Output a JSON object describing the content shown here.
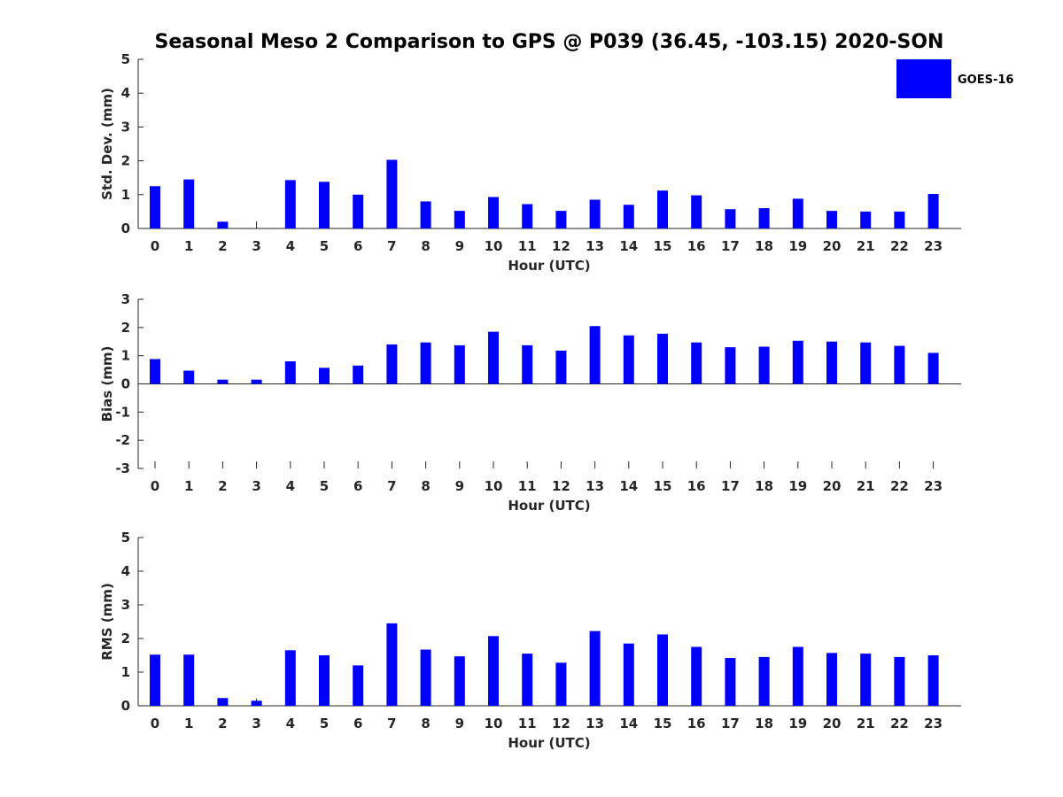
{
  "chart_data": {
    "title": "Seasonal Meso 2 Comparison to GPS @ P039 (36.45, -103.15) 2020-SON",
    "legend": {
      "label": "GOES-16",
      "placement": "top-right",
      "color": "#0000ff"
    },
    "bar_color": "#0000ff",
    "panels": [
      {
        "type": "bar",
        "ylabel": "Std. Dev. (mm)",
        "xlabel": "Hour (UTC)",
        "ylim": [
          0,
          5
        ],
        "yticks": [
          "0",
          "1",
          "2",
          "3",
          "4",
          "5"
        ],
        "categories": [
          "0",
          "1",
          "2",
          "3",
          "4",
          "5",
          "6",
          "7",
          "8",
          "9",
          "10",
          "11",
          "12",
          "13",
          "14",
          "15",
          "16",
          "17",
          "18",
          "19",
          "20",
          "21",
          "22",
          "23"
        ],
        "values": [
          1.25,
          1.45,
          0.2,
          0.0,
          1.43,
          1.38,
          1.0,
          2.03,
          0.8,
          0.52,
          0.93,
          0.72,
          0.52,
          0.85,
          0.7,
          1.12,
          0.98,
          0.57,
          0.6,
          0.88,
          0.52,
          0.5,
          0.5,
          1.02
        ]
      },
      {
        "type": "bar",
        "ylabel": "Bias (mm)",
        "xlabel": "Hour (UTC)",
        "ylim": [
          -3,
          3
        ],
        "yticks": [
          "-3",
          "-2",
          "-1",
          "0",
          "1",
          "2",
          "3"
        ],
        "categories": [
          "0",
          "1",
          "2",
          "3",
          "4",
          "5",
          "6",
          "7",
          "8",
          "9",
          "10",
          "11",
          "12",
          "13",
          "14",
          "15",
          "16",
          "17",
          "18",
          "19",
          "20",
          "21",
          "22",
          "23"
        ],
        "values": [
          0.88,
          0.47,
          0.15,
          0.15,
          0.8,
          0.57,
          0.65,
          1.4,
          1.47,
          1.37,
          1.85,
          1.37,
          1.18,
          2.05,
          1.72,
          1.78,
          1.47,
          1.3,
          1.32,
          1.53,
          1.5,
          1.47,
          1.35,
          1.1
        ]
      },
      {
        "type": "bar",
        "ylabel": "RMS (mm)",
        "xlabel": "Hour (UTC)",
        "ylim": [
          0,
          5
        ],
        "yticks": [
          "0",
          "1",
          "2",
          "3",
          "4",
          "5"
        ],
        "categories": [
          "0",
          "1",
          "2",
          "3",
          "4",
          "5",
          "6",
          "7",
          "8",
          "9",
          "10",
          "11",
          "12",
          "13",
          "14",
          "15",
          "16",
          "17",
          "18",
          "19",
          "20",
          "21",
          "22",
          "23"
        ],
        "values": [
          1.52,
          1.52,
          0.23,
          0.15,
          1.65,
          1.5,
          1.2,
          2.45,
          1.67,
          1.47,
          2.07,
          1.55,
          1.28,
          2.22,
          1.85,
          2.12,
          1.75,
          1.42,
          1.45,
          1.75,
          1.57,
          1.55,
          1.45,
          1.5
        ]
      }
    ]
  }
}
